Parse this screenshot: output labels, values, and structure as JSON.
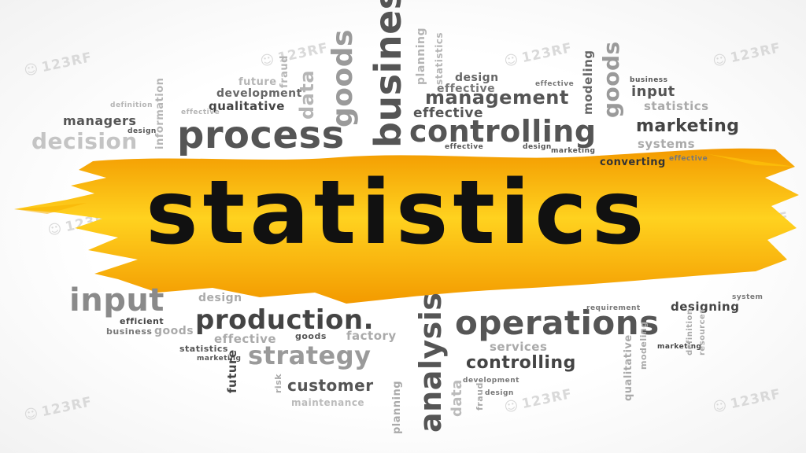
{
  "title": "statistics",
  "colors": {
    "brush_light": "#FFD21F",
    "brush_dark": "#F39A00",
    "dark_gray": "#555555",
    "mid_gray": "#8a8a8a",
    "light_gray": "#bdbdbd",
    "title_color": "#111111"
  },
  "words": {
    "process": "process",
    "business": "business",
    "goods_v": "goods",
    "data_v": "data",
    "fraud_v": "fraud",
    "planning_v": "planning",
    "statistics_v": "statistics",
    "future_top": "future",
    "development": "development",
    "qualitative": "qualitative",
    "managers": "managers",
    "design_sm": "design",
    "definition": "definition",
    "information_v": "information",
    "decision": "decision",
    "effective_top": "effective",
    "design_top": "design",
    "effective_mid": "effective",
    "management": "management",
    "effective_top2": "effective",
    "modeling_v": "modeling",
    "goods_v2": "goods",
    "business_sm": "business",
    "input_top": "input",
    "statistics_top": "statistics",
    "controlling": "controlling",
    "marketing": "marketing",
    "systems": "systems",
    "effective_sm": "effective",
    "design_sm2": "design",
    "marketing_sm": "marketing",
    "converting": "converting",
    "effective_sm2": "effective",
    "input_big": "input",
    "design_low": "design",
    "efficient": "efficient",
    "business_low": "business",
    "goods_low": "goods",
    "production": "production.",
    "effective_low": "effective",
    "goods_low2": "goods",
    "factory": "factory",
    "strategy": "strategy",
    "statistics_low": "statistics",
    "marketing_low": "marketing",
    "future_v": "future",
    "risk_v": "risk",
    "customer": "customer",
    "maintenance": "maintenance",
    "analysis_v": "analysis",
    "planning_v2": "planning",
    "operations": "operations",
    "services": "services",
    "requirement": "requirement",
    "designing": "designing",
    "system": "system",
    "controlling_low": "controlling",
    "development_low": "development",
    "data_v2": "data",
    "fraud_v2": "fraud",
    "design_low2": "design",
    "qualitative_v": "qualitative",
    "modeling_v2": "modeling",
    "marketing_low2": "marketing",
    "definition_v": "definition",
    "resources_v": "resources"
  },
  "watermark": "123RF"
}
